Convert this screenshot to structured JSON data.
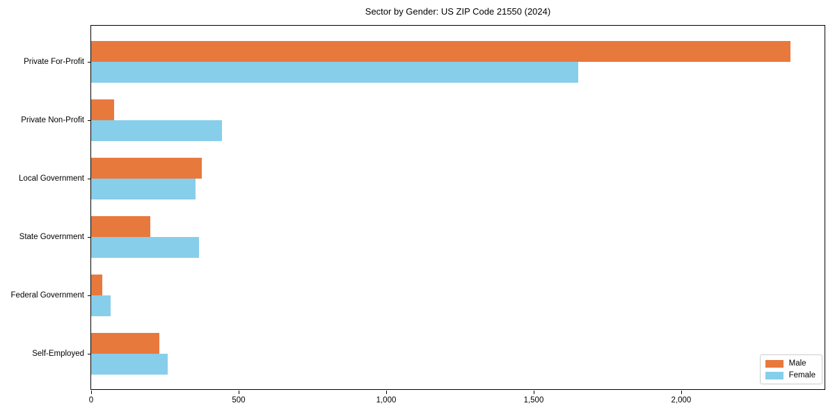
{
  "chart_data": {
    "type": "bar",
    "orientation": "horizontal",
    "title": "Sector by Gender: US ZIP Code 21550 (2024)",
    "categories": [
      "Private For-Profit",
      "Private Non-Profit",
      "Local Government",
      "State Government",
      "Federal Government",
      "Self-Employed"
    ],
    "series": [
      {
        "name": "Male",
        "color": "#e8793d",
        "values": [
          2370,
          78,
          374,
          200,
          38,
          230
        ]
      },
      {
        "name": "Female",
        "color": "#87ceeb",
        "values": [
          1650,
          443,
          354,
          366,
          66,
          259
        ]
      }
    ],
    "xlabel": "",
    "ylabel": "",
    "xlim": [
      0,
      2486
    ],
    "xticks": {
      "values": [
        0,
        500,
        1000,
        1500,
        2000
      ],
      "labels": [
        "0",
        "500",
        "1,000",
        "1,500",
        "2,000"
      ]
    },
    "legend": {
      "position": "lower right",
      "entries": [
        "Male",
        "Female"
      ]
    },
    "grid": false,
    "spines": "full-box",
    "colors": {
      "male": "#e8793d",
      "female": "#87ceeb",
      "spine": "#000000",
      "text": "#000000",
      "legend_border": "#cccccc"
    }
  }
}
